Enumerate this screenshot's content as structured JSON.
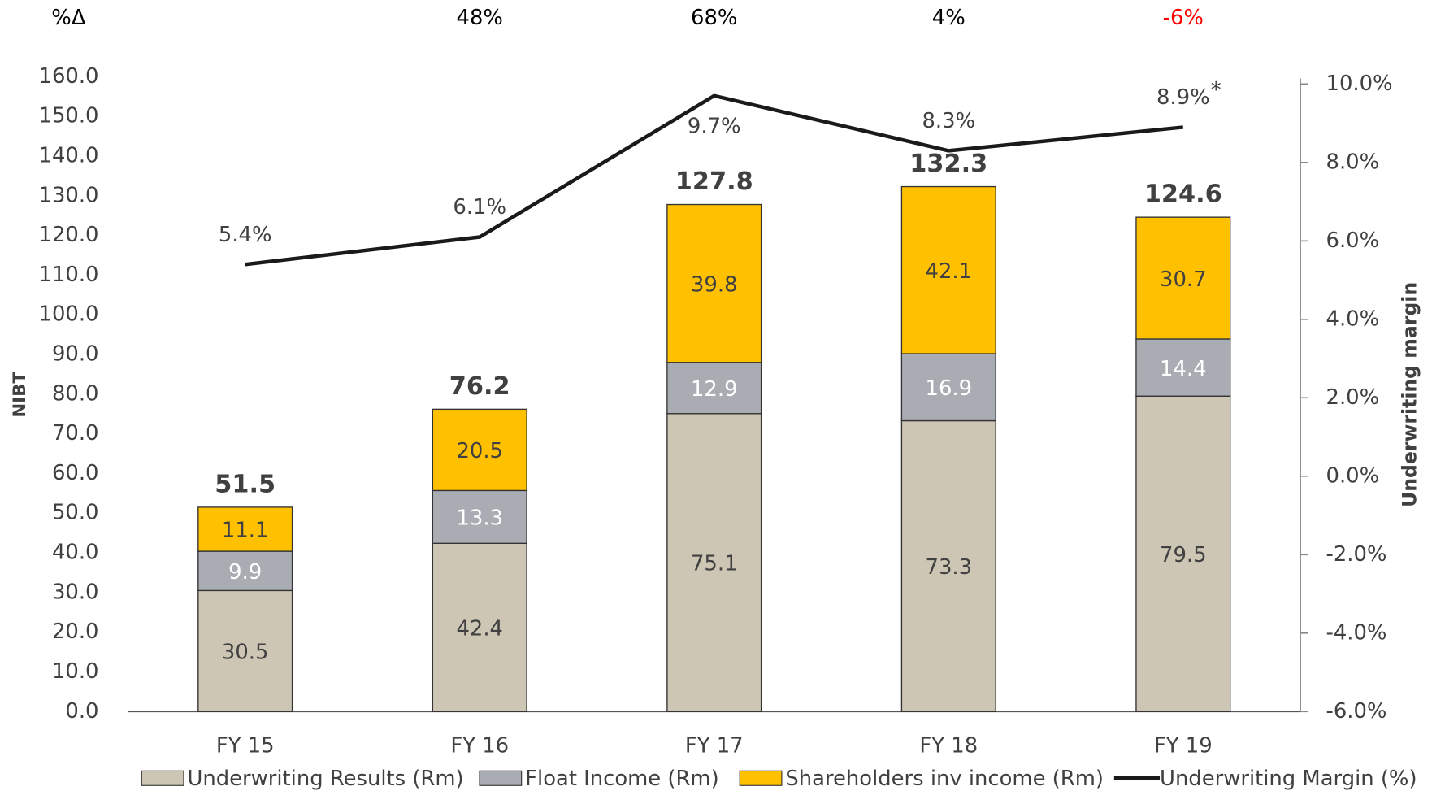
{
  "chart_data": {
    "type": "bar",
    "stacked": true,
    "categories": [
      "FY 15",
      "FY 16",
      "FY 17",
      "FY 18",
      "FY 19"
    ],
    "series": [
      {
        "name": "Underwriting Results (Rm)",
        "color": "#cdc6b4",
        "label_color": "#404040",
        "values": [
          30.5,
          42.4,
          75.1,
          73.3,
          79.5
        ]
      },
      {
        "name": "Float Income (Rm)",
        "color": "#a9adb3",
        "label_color": "#ffffff",
        "values": [
          9.9,
          13.3,
          12.9,
          16.9,
          14.4
        ]
      },
      {
        "name": "Shareholders inv income (Rm)",
        "color": "#ffc000",
        "label_color": "#404040",
        "values": [
          11.1,
          20.5,
          39.8,
          42.1,
          30.7
        ]
      },
      {
        "name": "Underwriting Margin (%)",
        "type": "line",
        "axis": "y2",
        "color": "#1a1a1a",
        "values": [
          5.4,
          6.1,
          9.7,
          8.3,
          8.9
        ],
        "value_labels": [
          "5.4%",
          "6.1%",
          "9.7%",
          "8.3%",
          "8.9%"
        ]
      }
    ],
    "totals": [
      51.5,
      76.2,
      127.8,
      132.3,
      124.6
    ],
    "change_title": "%Δ",
    "change": [
      null,
      48,
      68,
      4,
      -6
    ],
    "change_labels": [
      null,
      "48%",
      "68%",
      "4%",
      "-6%"
    ],
    "change_colors": [
      null,
      "#000000",
      "#000000",
      "#000000",
      "#ff0000"
    ],
    "note_marker": "*",
    "ylabel": "NIBT",
    "y2label": "Underwriting margin",
    "ylim": [
      0,
      160
    ],
    "yticks": [
      {
        "value": 0,
        "label": "0.0"
      },
      {
        "value": 10,
        "label": "10.0"
      },
      {
        "value": 20,
        "label": "20.0"
      },
      {
        "value": 30,
        "label": "30.0"
      },
      {
        "value": 40,
        "label": "40.0"
      },
      {
        "value": 50,
        "label": "50.0"
      },
      {
        "value": 60,
        "label": "60.0"
      },
      {
        "value": 70,
        "label": "70.0"
      },
      {
        "value": 80,
        "label": "80.0"
      },
      {
        "value": 90,
        "label": "90.0"
      },
      {
        "value": 100,
        "label": "100.0"
      },
      {
        "value": 110,
        "label": "110.0"
      },
      {
        "value": 120,
        "label": "120.0"
      },
      {
        "value": 130,
        "label": "130.0"
      },
      {
        "value": 140,
        "label": "140.0"
      },
      {
        "value": 150,
        "label": "150.0"
      },
      {
        "value": 160,
        "label": "160.0"
      }
    ],
    "y2lim": [
      -6,
      10
    ],
    "y2ticks": [
      {
        "value": -6,
        "label": "-6.0%"
      },
      {
        "value": -4,
        "label": "-4.0%"
      },
      {
        "value": -2,
        "label": "-2.0%"
      },
      {
        "value": 0,
        "label": "0.0%"
      },
      {
        "value": 2,
        "label": "2.0%"
      },
      {
        "value": 4,
        "label": "4.0%"
      },
      {
        "value": 6,
        "label": "6.0%"
      },
      {
        "value": 8,
        "label": "8.0%"
      },
      {
        "value": 10,
        "label": "10.0%"
      }
    ],
    "legend": "bottom"
  }
}
